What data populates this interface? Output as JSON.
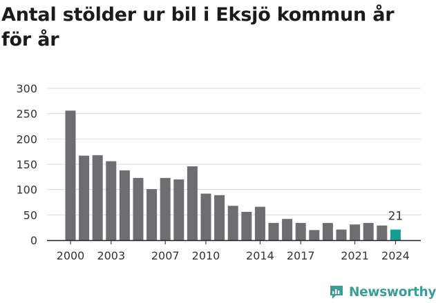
{
  "chart_data": {
    "type": "bar",
    "title": "Antal stölder ur bil i Eksjö kommun år för år",
    "categories": [
      "2000",
      "2001",
      "2002",
      "2003",
      "2004",
      "2005",
      "2006",
      "2007",
      "2008",
      "2009",
      "2010",
      "2011",
      "2012",
      "2013",
      "2014",
      "2015",
      "2016",
      "2017",
      "2018",
      "2019",
      "2020",
      "2021",
      "2022",
      "2023",
      "2024"
    ],
    "values": [
      256,
      167,
      168,
      156,
      138,
      123,
      101,
      123,
      120,
      146,
      92,
      89,
      68,
      56,
      66,
      34,
      42,
      34,
      20,
      34,
      21,
      31,
      34,
      29,
      21
    ],
    "xtick_labels": [
      "2000",
      "2003",
      "2007",
      "2010",
      "2014",
      "2017",
      "2021",
      "2024"
    ],
    "ytick_labels": [
      "0",
      "50",
      "100",
      "150",
      "200",
      "250",
      "300"
    ],
    "ylim": [
      0,
      300
    ],
    "xlabel": "",
    "ylabel": "",
    "grid": "horizontal",
    "bar_color": "#6e6d72",
    "highlight_color": "#159e94",
    "highlight_label": "21"
  },
  "brand": {
    "name": "Newsworthy",
    "color": "#3d9c96",
    "icon": "newsworthy-chart-icon"
  }
}
